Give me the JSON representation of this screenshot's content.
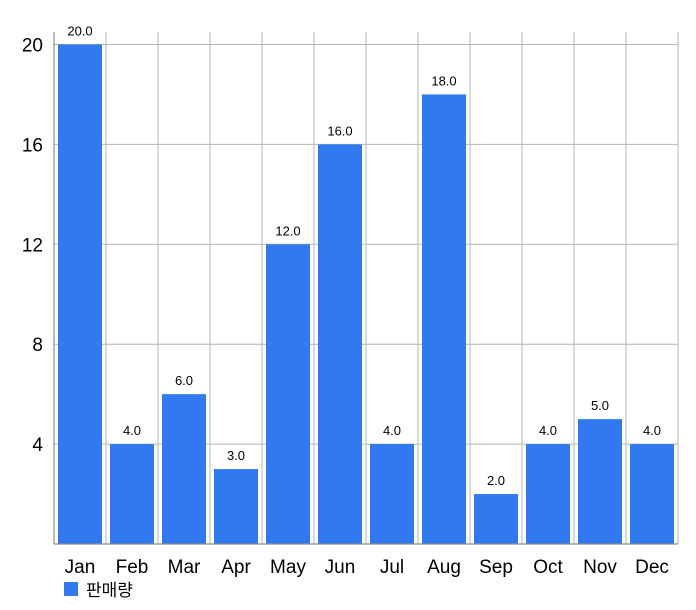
{
  "chart_data": {
    "type": "bar",
    "title": "",
    "xlabel": "",
    "ylabel": "",
    "categories": [
      "Jan",
      "Feb",
      "Mar",
      "Apr",
      "May",
      "Jun",
      "Jul",
      "Aug",
      "Sep",
      "Oct",
      "Nov",
      "Dec"
    ],
    "series": [
      {
        "name": "판매량",
        "values": [
          20,
          4,
          6,
          3,
          12,
          16,
          4,
          18,
          2,
          4,
          5,
          4
        ]
      }
    ],
    "data_labels": [
      "20.0",
      "4.0",
      "6.0",
      "3.0",
      "12.0",
      "16.0",
      "4.0",
      "18.0",
      "2.0",
      "4.0",
      "5.0",
      "4.0"
    ],
    "ylim": [
      0,
      20.5
    ],
    "yticks": [
      4,
      8,
      12,
      16,
      20
    ],
    "grid": "vertical and horizontal",
    "legend_position": "bottom-left",
    "colors": {
      "bar": "#3079f0",
      "grid": "#b4b4b4",
      "axis": "#8c8c8c",
      "text": "#000000"
    }
  }
}
